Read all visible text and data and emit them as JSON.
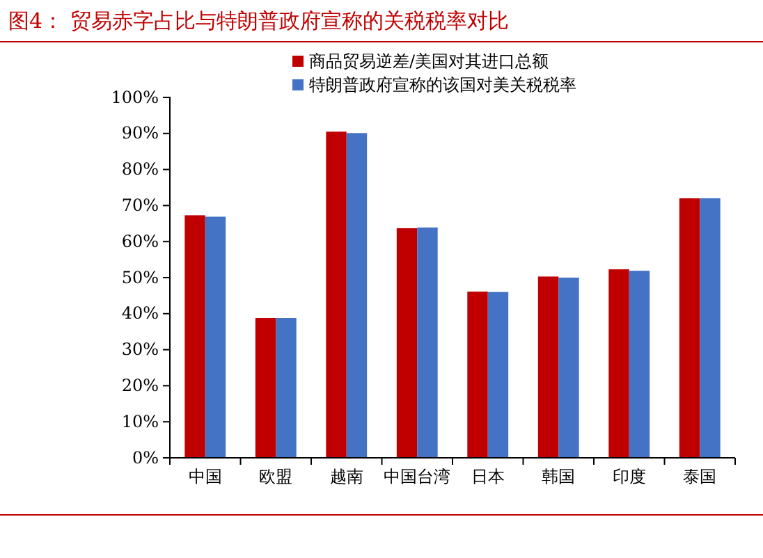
{
  "chart_data": {
    "type": "bar",
    "title": "图4：  贸易赤字占比与特朗普政府宣称的关税税率对比",
    "categories": [
      "中国",
      "欧盟",
      "越南",
      "中国台湾",
      "日本",
      "韩国",
      "印度",
      "泰国"
    ],
    "series": [
      {
        "name": "商品贸易逆差/美国对其进口总额",
        "color": "#c00000",
        "values": [
          67.3,
          38.8,
          90.5,
          63.7,
          46.1,
          50.3,
          52.3,
          72.0
        ]
      },
      {
        "name": "特朗普政府宣称的该国对美关税税率",
        "color": "#4472c4",
        "values": [
          66.9,
          38.8,
          90.1,
          63.9,
          46.0,
          50.0,
          51.9,
          72.0
        ]
      }
    ],
    "ylim": [
      0,
      100
    ],
    "yticks": [
      {
        "value": 0,
        "label": "0%"
      },
      {
        "value": 10,
        "label": "10%"
      },
      {
        "value": 20,
        "label": "20%"
      },
      {
        "value": 30,
        "label": "30%"
      },
      {
        "value": 40,
        "label": "40%"
      },
      {
        "value": 50,
        "label": "50%"
      },
      {
        "value": 60,
        "label": "60%"
      },
      {
        "value": 70,
        "label": "70%"
      },
      {
        "value": 80,
        "label": "80%"
      },
      {
        "value": 90,
        "label": "90%"
      },
      {
        "value": 100,
        "label": "100%"
      }
    ],
    "grid": false,
    "legend": "top"
  }
}
